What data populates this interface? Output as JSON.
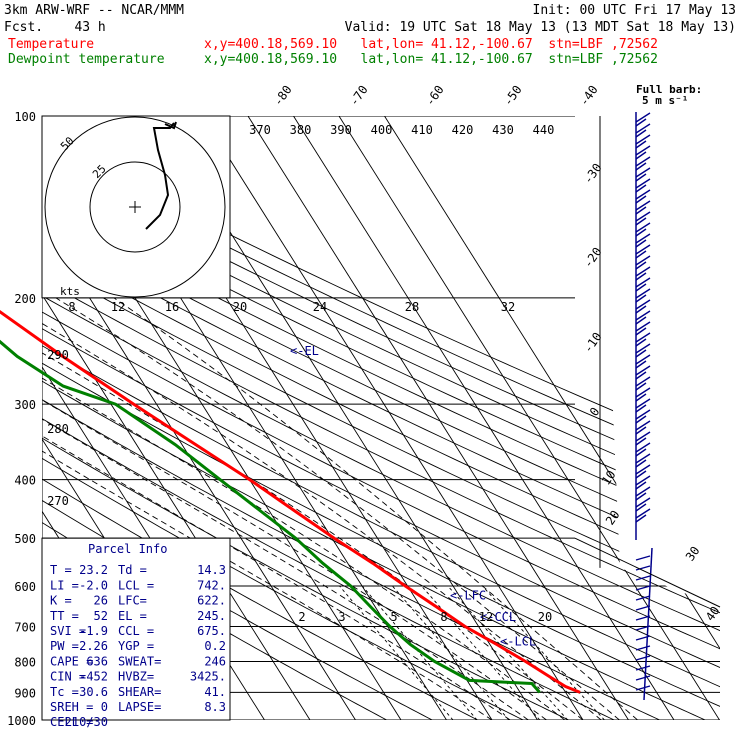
{
  "header": {
    "model": "3km ARW-WRF -- NCAR/MMM",
    "init": "Init: 00 UTC Fri 17 May 13",
    "fcst": "Fcst.    43 h",
    "valid": "Valid: 19 UTC Sat 18 May 13 (13 MDT Sat 18 May 13)",
    "temp_label": "Temperature",
    "temp_info": "x,y=400.18,569.10   lat,lon= 41.12,-100.67  stn=LBF ,72562",
    "dew_label": "Dewpoint temperature",
    "dew_info": "x,y=400.18,569.10   lat,lon= 41.12,-100.67  stn=LBF ,72562"
  },
  "colors": {
    "temperature": "#ff0000",
    "dewpoint": "#008000",
    "barbs": "#00008b",
    "parcel_text": "#00008b"
  },
  "barb_legend": {
    "line1": "Full barb:",
    "line2": "5 m s⁻¹"
  },
  "chart_data": {
    "type": "skew-t log-p",
    "y_axis": {
      "label": "pressure (hPa)",
      "log_scale": true,
      "ticks": [
        100,
        200,
        300,
        400,
        500,
        600,
        700,
        800,
        900,
        1000
      ]
    },
    "isotherm_labels": [
      "-80",
      "-70",
      "-60",
      "-50",
      "-40",
      "-30",
      "-20",
      "-10",
      "0",
      "10",
      "20",
      "30",
      "40"
    ],
    "theta_e_labels": [
      "370",
      "380",
      "390",
      "400",
      "410",
      "420",
      "430",
      "440"
    ],
    "theta_e_left_labels": [
      "290",
      "280",
      "270"
    ],
    "mixing_ratio_labels": [
      "2",
      "3",
      "5",
      "8",
      "12",
      "20"
    ],
    "hodograph_speed_labels": [
      "8",
      "12",
      "16",
      "20",
      "24",
      "28",
      "32"
    ],
    "hodograph_ring_labels": [
      "25",
      "50"
    ],
    "hodograph_unit": "kts",
    "temperature": [
      {
        "p": 900,
        "t": 23.2
      },
      {
        "p": 880,
        "t": 20.8
      },
      {
        "p": 850,
        "t": 18.8
      },
      {
        "p": 800,
        "t": 15.5
      },
      {
        "p": 750,
        "t": 11.5
      },
      {
        "p": 700,
        "t": 7.0
      },
      {
        "p": 650,
        "t": 3.5
      },
      {
        "p": 600,
        "t": -0.5
      },
      {
        "p": 550,
        "t": -4.5
      },
      {
        "p": 500,
        "t": -9.5
      },
      {
        "p": 450,
        "t": -14.5
      },
      {
        "p": 400,
        "t": -20.0
      },
      {
        "p": 350,
        "t": -27.0
      },
      {
        "p": 300,
        "t": -35.0
      },
      {
        "p": 250,
        "t": -44.0
      },
      {
        "p": 200,
        "t": -54.0
      },
      {
        "p": 180,
        "t": -56.0
      },
      {
        "p": 160,
        "t": -55.5
      },
      {
        "p": 140,
        "t": -55.0
      },
      {
        "p": 120,
        "t": -56.0
      },
      {
        "p": 100,
        "t": -59.0
      }
    ],
    "dewpoint": [
      {
        "p": 900,
        "t": 14.3
      },
      {
        "p": 870,
        "t": 13.8
      },
      {
        "p": 860,
        "t": 0.5
      },
      {
        "p": 800,
        "t": -4.5
      },
      {
        "p": 750,
        "t": -7.5
      },
      {
        "p": 700,
        "t": -9.5
      },
      {
        "p": 650,
        "t": -11.0
      },
      {
        "p": 600,
        "t": -12.5
      },
      {
        "p": 550,
        "t": -15.5
      },
      {
        "p": 500,
        "t": -18.0
      },
      {
        "p": 450,
        "t": -22.0
      },
      {
        "p": 400,
        "t": -26.5
      },
      {
        "p": 350,
        "t": -31.5
      },
      {
        "p": 300,
        "t": -39.0
      },
      {
        "p": 280,
        "t": -48.0
      },
      {
        "p": 250,
        "t": -54.0
      },
      {
        "p": 200,
        "t": -61.0
      },
      {
        "p": 180,
        "t": -67.0
      },
      {
        "p": 160,
        "t": -67.0
      },
      {
        "p": 140,
        "t": -68.0
      },
      {
        "p": 120,
        "t": -71.0
      },
      {
        "p": 100,
        "t": -75.0
      }
    ],
    "annotations": [
      {
        "text": "<-EL",
        "p": 245
      },
      {
        "text": "<-LFC",
        "p": 622
      },
      {
        "text": "<-CCL",
        "p": 675
      },
      {
        "text": "<-LCL",
        "p": 742
      }
    ],
    "parcel_info": {
      "title": "Parcel Info",
      "rows": [
        [
          "T  =",
          "23.2",
          "Td =",
          "14.3"
        ],
        [
          "LI =",
          "-2.0",
          "LCL =",
          "742."
        ],
        [
          "K  =",
          "26",
          "LFC=",
          "622."
        ],
        [
          "TT =",
          "52",
          "EL =",
          "245."
        ],
        [
          "SVI =",
          "-1.9",
          "CCL =",
          "675."
        ],
        [
          "PW =",
          "2.26",
          "YGP =",
          "0.2"
        ],
        [
          "CAPE =",
          "636",
          "SWEAT=",
          "246"
        ],
        [
          "CIN =",
          "-452",
          "HVBZ=",
          "3425."
        ],
        [
          "Tc =",
          "30.6",
          "SHEAR=",
          "41."
        ],
        [
          "SREH =",
          "0",
          "LAPSE=",
          "8.3"
        ],
        [
          "CELL =",
          "210/30",
          "",
          ""
        ]
      ]
    }
  }
}
